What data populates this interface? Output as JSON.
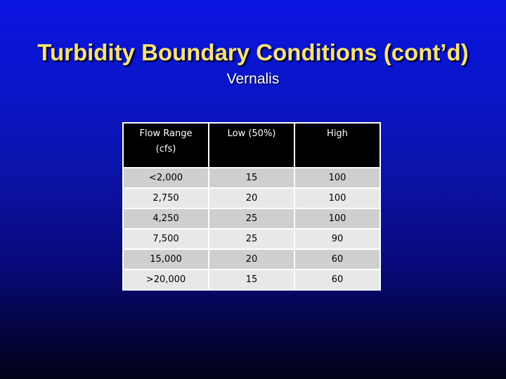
{
  "slide": {
    "title": "Turbidity Boundary Conditions (cont’d)",
    "subtitle": "Vernalis"
  },
  "table": {
    "headers": [
      "Flow Range (cfs)",
      "Low (50%)",
      "High"
    ],
    "rows": [
      [
        "<2,000",
        "15",
        "100"
      ],
      [
        "2,750",
        "20",
        "100"
      ],
      [
        "4,250",
        "25",
        "100"
      ],
      [
        "7,500",
        "25",
        "90"
      ],
      [
        "15,000",
        "20",
        "60"
      ],
      [
        ">20,000",
        "15",
        "60"
      ]
    ]
  },
  "colors": {
    "title": "#f6e27a",
    "header_bg": "#000000",
    "row_dark": "#cfcfcf",
    "row_light": "#e8e8e8"
  }
}
